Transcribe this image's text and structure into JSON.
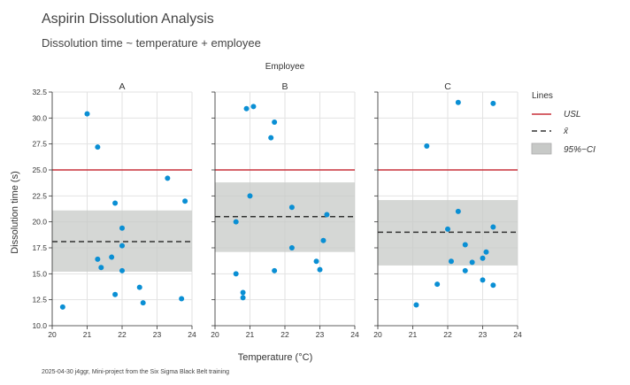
{
  "chart_data": {
    "type": "scatter",
    "title": "Aspirin Dissolution Analysis",
    "subtitle": "Dissolution time ~ temperature + employee",
    "facet_header": "Employee",
    "xlabel": "Temperature (°C)",
    "ylabel": "Dissolution time (s)",
    "xlim": [
      20,
      24
    ],
    "ylim": [
      10,
      32.5
    ],
    "xticks": [
      20,
      21,
      22,
      23,
      24
    ],
    "yticks": [
      "10.0",
      "12.5",
      "15.0",
      "17.5",
      "20.0",
      "22.5",
      "25.0",
      "27.5",
      "30.0",
      "32.5"
    ],
    "usl": 25,
    "grid": true,
    "point_color": "#0a8fd4",
    "usl_color": "#c8313a",
    "mean_color": "#333333",
    "ci_color": "#c7c9c7",
    "panels": [
      {
        "name": "A",
        "mean": 18.1,
        "ci": [
          15.2,
          21.1
        ],
        "points": [
          {
            "x": 20.3,
            "y": 11.8
          },
          {
            "x": 21.0,
            "y": 30.4
          },
          {
            "x": 21.3,
            "y": 27.2
          },
          {
            "x": 21.3,
            "y": 16.4
          },
          {
            "x": 21.4,
            "y": 15.6
          },
          {
            "x": 21.7,
            "y": 16.6
          },
          {
            "x": 21.8,
            "y": 21.8
          },
          {
            "x": 21.8,
            "y": 13.0
          },
          {
            "x": 22.0,
            "y": 19.4
          },
          {
            "x": 22.0,
            "y": 17.7
          },
          {
            "x": 22.0,
            "y": 15.3
          },
          {
            "x": 22.5,
            "y": 13.7
          },
          {
            "x": 22.6,
            "y": 12.2
          },
          {
            "x": 23.3,
            "y": 24.2
          },
          {
            "x": 23.7,
            "y": 12.6
          },
          {
            "x": 23.8,
            "y": 22.0
          }
        ]
      },
      {
        "name": "B",
        "mean": 20.5,
        "ci": [
          17.1,
          23.8
        ],
        "points": [
          {
            "x": 20.6,
            "y": 20.0
          },
          {
            "x": 20.6,
            "y": 15.0
          },
          {
            "x": 20.8,
            "y": 13.2
          },
          {
            "x": 20.8,
            "y": 12.7
          },
          {
            "x": 20.9,
            "y": 30.9
          },
          {
            "x": 21.0,
            "y": 22.5
          },
          {
            "x": 21.1,
            "y": 31.1
          },
          {
            "x": 21.6,
            "y": 28.1
          },
          {
            "x": 21.7,
            "y": 29.6
          },
          {
            "x": 21.7,
            "y": 15.3
          },
          {
            "x": 22.2,
            "y": 21.4
          },
          {
            "x": 22.2,
            "y": 17.5
          },
          {
            "x": 22.9,
            "y": 16.2
          },
          {
            "x": 23.0,
            "y": 15.4
          },
          {
            "x": 23.1,
            "y": 18.2
          },
          {
            "x": 23.2,
            "y": 20.7
          }
        ]
      },
      {
        "name": "C",
        "mean": 19.0,
        "ci": [
          15.8,
          22.1
        ],
        "points": [
          {
            "x": 21.1,
            "y": 12.0
          },
          {
            "x": 21.4,
            "y": 27.3
          },
          {
            "x": 21.7,
            "y": 14.0
          },
          {
            "x": 22.0,
            "y": 19.3
          },
          {
            "x": 22.1,
            "y": 16.2
          },
          {
            "x": 22.3,
            "y": 31.5
          },
          {
            "x": 22.3,
            "y": 21.0
          },
          {
            "x": 22.5,
            "y": 17.8
          },
          {
            "x": 22.5,
            "y": 15.3
          },
          {
            "x": 22.7,
            "y": 16.1
          },
          {
            "x": 23.0,
            "y": 16.5
          },
          {
            "x": 23.0,
            "y": 14.4
          },
          {
            "x": 23.1,
            "y": 17.1
          },
          {
            "x": 23.3,
            "y": 31.4
          },
          {
            "x": 23.3,
            "y": 19.5
          },
          {
            "x": 23.3,
            "y": 13.9
          }
        ]
      }
    ],
    "legend": {
      "title": "Lines",
      "position": "right",
      "entries": [
        "USL",
        "x̄",
        "95%−CI"
      ]
    },
    "footer": "2025-04-30 j4ggr, Mini-project from the Six Sigma Black Belt training"
  }
}
